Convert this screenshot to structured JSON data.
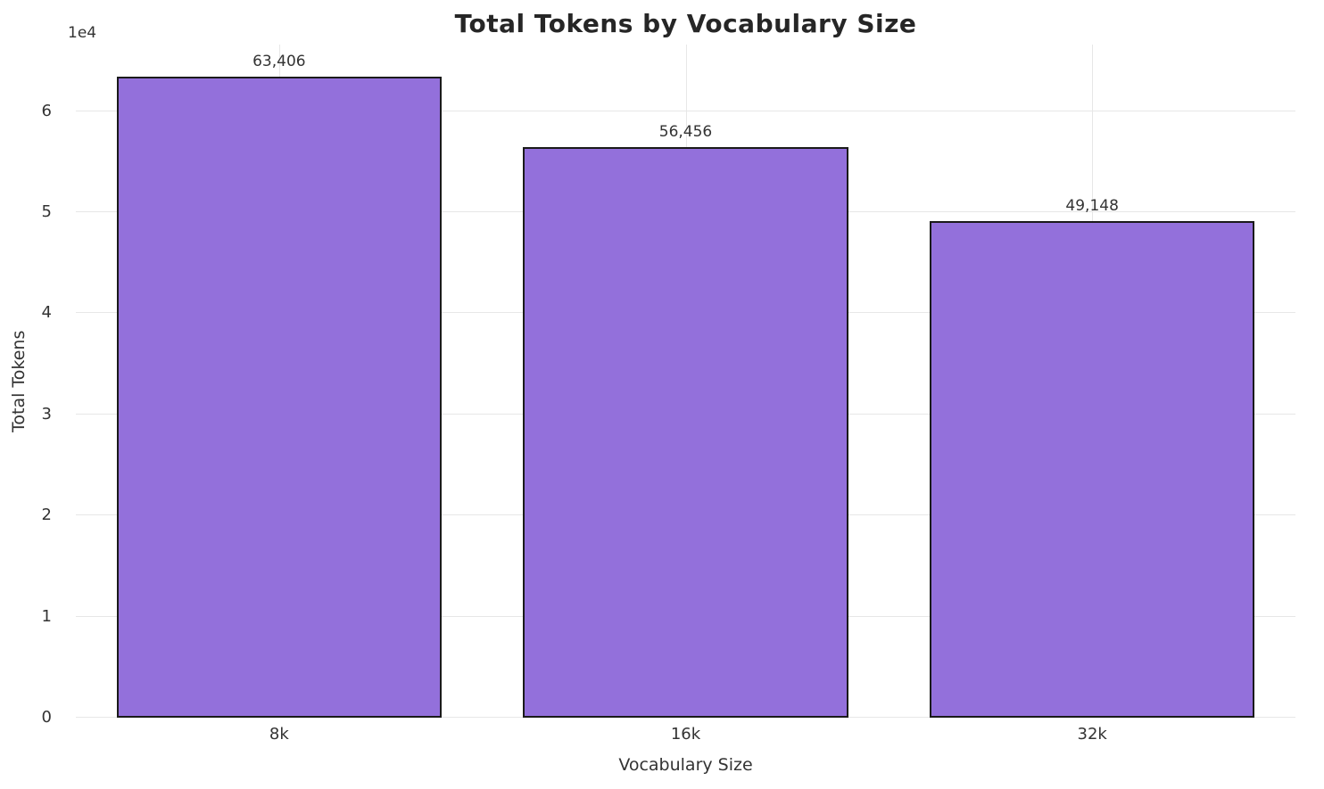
{
  "chart_data": {
    "type": "bar",
    "title": "Total Tokens by Vocabulary Size",
    "xlabel": "Vocabulary Size",
    "ylabel": "Total Tokens",
    "offset_label": "1e4",
    "categories": [
      "8k",
      "16k",
      "32k"
    ],
    "values": [
      63406,
      56456,
      49148
    ],
    "value_labels": [
      "63,406",
      "56,456",
      "49,148"
    ],
    "ylim": [
      0,
      66576
    ],
    "yticks": [
      0,
      10000,
      20000,
      30000,
      40000,
      50000,
      60000
    ],
    "ytick_labels": [
      "0",
      "1",
      "2",
      "3",
      "4",
      "5",
      "6"
    ],
    "bar_color": "#9370DB",
    "bar_edge_color": "#1a1a1a",
    "grid": true,
    "legend": "none",
    "background_color": "#ffffff",
    "grid_color": "#e7e7e7"
  }
}
